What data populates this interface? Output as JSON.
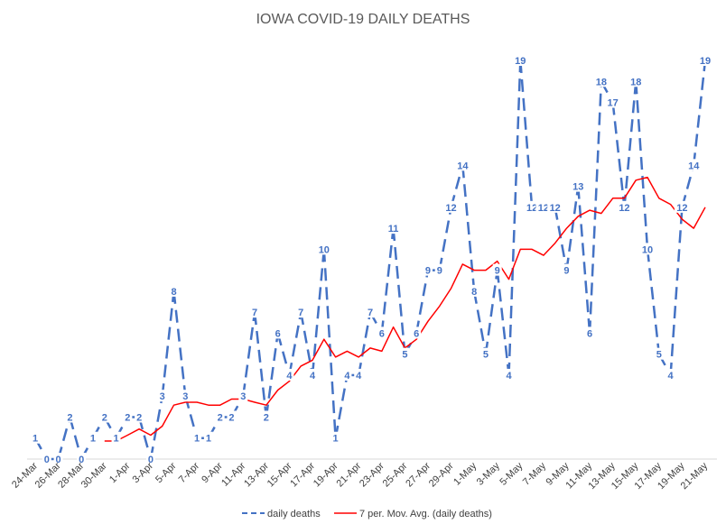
{
  "chart_data": {
    "type": "line",
    "title": "IOWA COVID-19 DAILY DEATHS",
    "xlabel": "",
    "ylabel": "",
    "ylim": [
      0,
      19
    ],
    "grid": false,
    "legend": "bottom",
    "x": [
      "24-Mar",
      "25-Mar",
      "26-Mar",
      "27-Mar",
      "28-Mar",
      "29-Mar",
      "30-Mar",
      "31-Mar",
      "1-Apr",
      "2-Apr",
      "3-Apr",
      "4-Apr",
      "5-Apr",
      "6-Apr",
      "7-Apr",
      "8-Apr",
      "9-Apr",
      "10-Apr",
      "11-Apr",
      "12-Apr",
      "13-Apr",
      "14-Apr",
      "15-Apr",
      "16-Apr",
      "17-Apr",
      "18-Apr",
      "19-Apr",
      "20-Apr",
      "21-Apr",
      "22-Apr",
      "23-Apr",
      "24-Apr",
      "25-Apr",
      "26-Apr",
      "27-Apr",
      "28-Apr",
      "29-Apr",
      "30-Apr",
      "1-May",
      "2-May",
      "3-May",
      "4-May",
      "5-May",
      "6-May",
      "7-May",
      "8-May",
      "9-May",
      "10-May",
      "11-May",
      "12-May",
      "13-May",
      "14-May",
      "15-May",
      "16-May",
      "17-May",
      "18-May",
      "19-May",
      "20-May",
      "21-May"
    ],
    "x_tick_labels": [
      "24-Mar",
      "26-Mar",
      "28-Mar",
      "30-Mar",
      "1-Apr",
      "3-Apr",
      "5-Apr",
      "7-Apr",
      "9-Apr",
      "11-Apr",
      "13-Apr",
      "15-Apr",
      "17-Apr",
      "19-Apr",
      "21-Apr",
      "23-Apr",
      "25-Apr",
      "27-Apr",
      "29-Apr",
      "1-May",
      "3-May",
      "5-May",
      "7-May",
      "9-May",
      "11-May",
      "13-May",
      "15-May",
      "17-May",
      "19-May",
      "21-May"
    ],
    "series": [
      {
        "name": "daily deaths",
        "color": "#4472C4",
        "style": "dashed",
        "values": [
          1,
          0,
          0,
          2,
          0,
          1,
          2,
          1,
          2,
          2,
          0,
          3,
          8,
          3,
          1,
          1,
          2,
          2,
          3,
          7,
          2,
          6,
          4,
          7,
          4,
          10,
          1,
          4,
          4,
          7,
          6,
          11,
          5,
          6,
          9,
          9,
          12,
          14,
          8,
          5,
          9,
          4,
          19,
          12,
          12,
          12,
          9,
          13,
          6,
          18,
          17,
          12,
          18,
          10,
          5,
          4,
          12,
          14,
          19
        ]
      },
      {
        "name": "7 per. Mov. Avg. (daily deaths)",
        "color": "#FF0000",
        "style": "solid",
        "values": [
          null,
          null,
          null,
          null,
          null,
          null,
          0.86,
          0.86,
          1.14,
          1.43,
          1.14,
          1.57,
          2.57,
          2.71,
          2.71,
          2.57,
          2.57,
          2.86,
          2.86,
          2.71,
          2.57,
          3.29,
          3.71,
          4.43,
          4.71,
          5.71,
          4.86,
          5.14,
          4.86,
          5.29,
          5.14,
          6.29,
          5.29,
          5.71,
          6.57,
          7.29,
          8.14,
          9.29,
          9.0,
          9.0,
          9.43,
          8.57,
          10.0,
          10.0,
          9.71,
          10.29,
          11.0,
          11.57,
          11.86,
          11.71,
          12.43,
          12.43,
          13.29,
          13.43,
          12.43,
          12.14,
          11.43,
          11.0,
          12.0
        ]
      }
    ]
  }
}
